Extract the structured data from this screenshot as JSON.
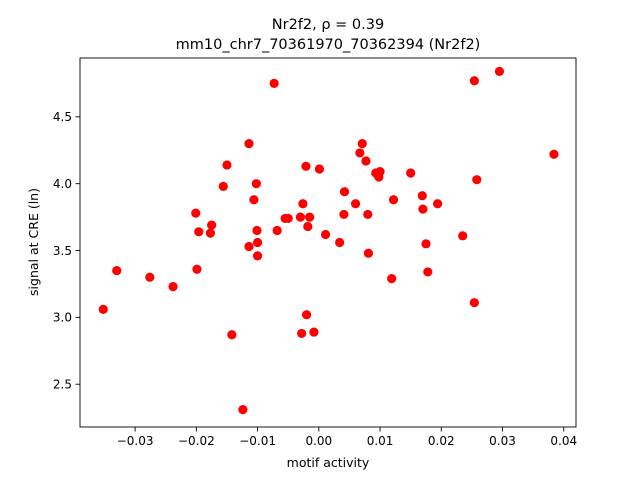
{
  "chart_data": {
    "type": "scatter",
    "title_line1": "Nr2f2, ρ = 0.39",
    "title_line2": "mm10_chr7_70361970_70362394 (Nr2f2)",
    "xlabel": "motif activity",
    "ylabel": "signal at CRE (ln)",
    "xlim": [
      -0.039,
      0.042
    ],
    "ylim": [
      2.18,
      4.94
    ],
    "xticks": [
      -0.03,
      -0.02,
      -0.01,
      0.0,
      0.01,
      0.02,
      0.03,
      0.04
    ],
    "xtick_labels": [
      "−0.03",
      "−0.02",
      "−0.01",
      "0.00",
      "0.01",
      "0.02",
      "0.03",
      "0.04"
    ],
    "yticks": [
      2.5,
      3.0,
      3.5,
      4.0,
      4.5
    ],
    "ytick_labels": [
      "2.5",
      "3.0",
      "3.5",
      "4.0",
      "4.5"
    ],
    "grid": false,
    "marker_color": "#ff0000",
    "points": [
      {
        "x": -0.0352,
        "y": 3.06
      },
      {
        "x": -0.033,
        "y": 3.35
      },
      {
        "x": -0.0276,
        "y": 3.3
      },
      {
        "x": -0.0238,
        "y": 3.23
      },
      {
        "x": -0.0201,
        "y": 3.78
      },
      {
        "x": -0.0196,
        "y": 3.64
      },
      {
        "x": -0.0199,
        "y": 3.36
      },
      {
        "x": -0.0177,
        "y": 3.63
      },
      {
        "x": -0.0175,
        "y": 3.69
      },
      {
        "x": -0.0156,
        "y": 3.98
      },
      {
        "x": -0.015,
        "y": 4.14
      },
      {
        "x": -0.0142,
        "y": 2.87
      },
      {
        "x": -0.0124,
        "y": 2.31
      },
      {
        "x": -0.0114,
        "y": 4.3
      },
      {
        "x": -0.0114,
        "y": 3.53
      },
      {
        "x": -0.0106,
        "y": 3.88
      },
      {
        "x": -0.0102,
        "y": 4.0
      },
      {
        "x": -0.0101,
        "y": 3.65
      },
      {
        "x": -0.01,
        "y": 3.56
      },
      {
        "x": -0.01,
        "y": 3.46
      },
      {
        "x": -0.0073,
        "y": 4.75
      },
      {
        "x": -0.0068,
        "y": 3.65
      },
      {
        "x": -0.0055,
        "y": 3.74
      },
      {
        "x": -0.005,
        "y": 3.74
      },
      {
        "x": -0.003,
        "y": 3.75
      },
      {
        "x": -0.0026,
        "y": 3.85
      },
      {
        "x": -0.0028,
        "y": 2.88
      },
      {
        "x": -0.0021,
        "y": 4.13
      },
      {
        "x": -0.002,
        "y": 3.02
      },
      {
        "x": -0.0018,
        "y": 3.68
      },
      {
        "x": -0.0015,
        "y": 3.75
      },
      {
        "x": -0.0008,
        "y": 2.89
      },
      {
        "x": 0.0001,
        "y": 4.11
      },
      {
        "x": 0.0011,
        "y": 3.62
      },
      {
        "x": 0.0034,
        "y": 3.56
      },
      {
        "x": 0.0041,
        "y": 3.77
      },
      {
        "x": 0.0042,
        "y": 3.94
      },
      {
        "x": 0.006,
        "y": 3.85
      },
      {
        "x": 0.0067,
        "y": 4.23
      },
      {
        "x": 0.0071,
        "y": 4.3
      },
      {
        "x": 0.0077,
        "y": 4.17
      },
      {
        "x": 0.008,
        "y": 3.77
      },
      {
        "x": 0.0081,
        "y": 3.48
      },
      {
        "x": 0.0093,
        "y": 4.08
      },
      {
        "x": 0.0098,
        "y": 4.05
      },
      {
        "x": 0.01,
        "y": 4.09
      },
      {
        "x": 0.0119,
        "y": 3.29
      },
      {
        "x": 0.0122,
        "y": 3.88
      },
      {
        "x": 0.015,
        "y": 4.08
      },
      {
        "x": 0.0169,
        "y": 3.91
      },
      {
        "x": 0.017,
        "y": 3.81
      },
      {
        "x": 0.0175,
        "y": 3.55
      },
      {
        "x": 0.0178,
        "y": 3.34
      },
      {
        "x": 0.0194,
        "y": 3.85
      },
      {
        "x": 0.0235,
        "y": 3.61
      },
      {
        "x": 0.0254,
        "y": 4.77
      },
      {
        "x": 0.0254,
        "y": 3.11
      },
      {
        "x": 0.0258,
        "y": 4.03
      },
      {
        "x": 0.0295,
        "y": 4.84
      },
      {
        "x": 0.0384,
        "y": 4.22
      }
    ]
  }
}
